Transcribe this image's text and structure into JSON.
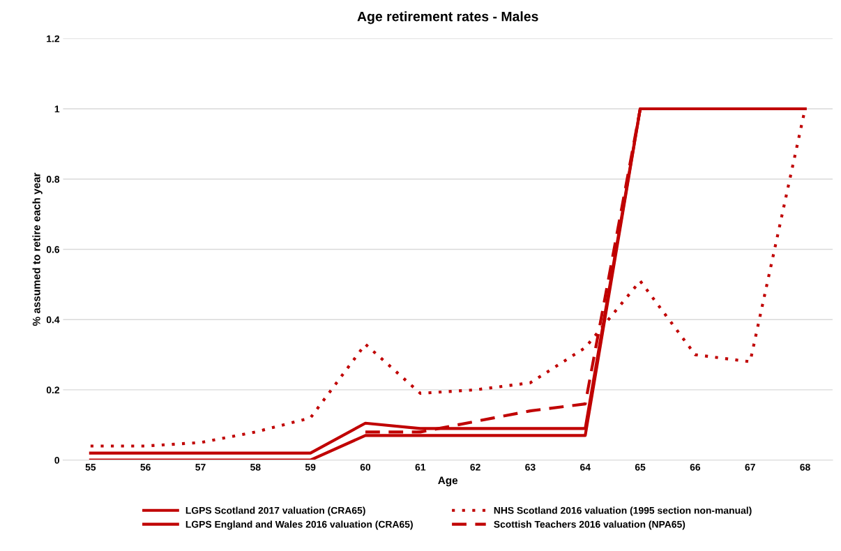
{
  "chart_data": {
    "type": "line",
    "title": "Age retirement rates - Males",
    "xlabel": "Age",
    "ylabel": "% assumed to retire each year",
    "categories": [
      "55",
      "56",
      "57",
      "58",
      "59",
      "60",
      "61",
      "62",
      "63",
      "64",
      "65",
      "66",
      "67",
      "68"
    ],
    "series": [
      {
        "name": "LGPS Scotland 2017 valuation (CRA65)",
        "color": "#c00000",
        "line_style": "solid",
        "values": [
          0.02,
          0.02,
          0.02,
          0.02,
          0.02,
          0.105,
          0.09,
          0.09,
          0.09,
          0.09,
          1,
          1,
          1,
          1
        ]
      },
      {
        "name": "LGPS England and Wales 2016 valuation (CRA65)",
        "color": "#c00000",
        "line_style": "solid",
        "values": [
          0,
          0,
          0,
          0,
          0,
          0.07,
          0.07,
          0.07,
          0.07,
          0.07,
          1,
          1,
          1,
          1
        ]
      },
      {
        "name": "NHS Scotland 2016 valuation (1995 section non-manual)",
        "color": "#c00000",
        "line_style": "dotted",
        "values": [
          0.04,
          0.04,
          0.05,
          0.08,
          0.12,
          0.33,
          0.19,
          0.2,
          0.22,
          0.32,
          0.51,
          0.3,
          0.28,
          1
        ]
      },
      {
        "name": "Scottish Teachers 2016 valuation (NPA65)",
        "color": "#c00000",
        "line_style": "dashed",
        "values": [
          null,
          null,
          null,
          null,
          null,
          0.08,
          0.08,
          0.11,
          0.14,
          0.16,
          1,
          1,
          1,
          1
        ]
      }
    ],
    "ylim": [
      0,
      1.2
    ],
    "yticks": [
      0,
      0.2,
      0.4,
      0.6,
      0.8,
      1,
      1.2
    ],
    "grid": "y",
    "legend": "bottom",
    "marker": "none"
  }
}
